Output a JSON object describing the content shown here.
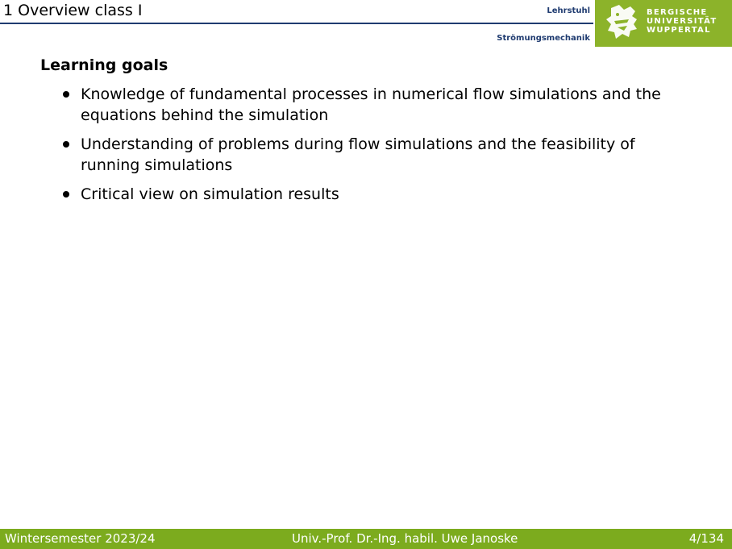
{
  "header": {
    "title": "1 Overview class I",
    "chair_line1": "Lehrstuhl",
    "chair_line2": "Strömungsmechanik"
  },
  "logo": {
    "icon": "lion-emblem-icon",
    "line1": "BERGISCHE",
    "line2": "UNIVERSITÄT",
    "line3": "WUPPERTAL",
    "color": "#8cb32a"
  },
  "content": {
    "heading": "Learning goals",
    "items": [
      "Knowledge of fundamental processes in numerical flow simulations and the equations behind the simulation",
      "Understanding of problems during flow simulations and the feasibility of running simulations",
      "Critical view on simulation results"
    ]
  },
  "footer": {
    "semester": "Wintersemester 2023/24",
    "author": "Univ.-Prof. Dr.-Ing. habil. Uwe Janoske",
    "page": "4/134",
    "color": "#7cab1e"
  }
}
